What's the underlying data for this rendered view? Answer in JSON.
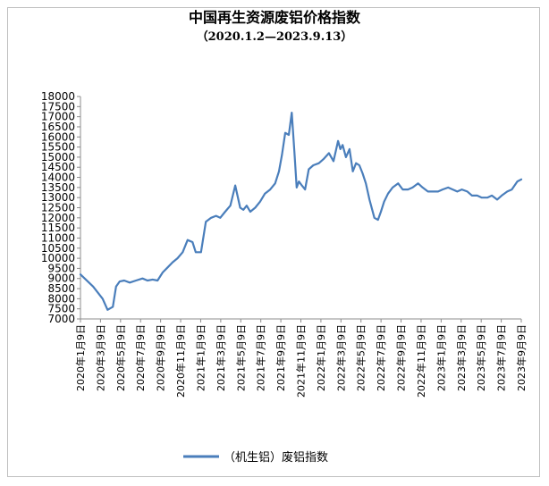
{
  "chart_data": {
    "type": "line",
    "title": "中国再生资源废铝价格指数",
    "subtitle": "（2020.1.2—2023.9.13）",
    "xlabel": "",
    "ylabel": "",
    "ylim": [
      7000,
      18000
    ],
    "yticks": [
      7000,
      7500,
      8000,
      8500,
      9000,
      9500,
      10000,
      10500,
      11000,
      11500,
      12000,
      12500,
      13000,
      13500,
      14000,
      14500,
      15000,
      15500,
      16000,
      16500,
      17000,
      17500,
      18000
    ],
    "xticks": [
      "2020年1月9日",
      "2020年3月9日",
      "2020年5月9日",
      "2020年7月9日",
      "2020年9月9日",
      "2020年11月9日",
      "2021年1月9日",
      "2021年3月9日",
      "2021年5月9日",
      "2021年7月9日",
      "2021年9月9日",
      "2021年11月9日",
      "2022年1月9日",
      "2022年3月9日",
      "2022年5月9日",
      "2022年7月9日",
      "2022年9月9日",
      "2022年11月9日",
      "2023年1月9日",
      "2023年3月9日",
      "2023年5月9日",
      "2023年7月9日",
      "2023年9月9日"
    ],
    "grid": false,
    "legend_position": "bottom",
    "series": [
      {
        "name": "（机生铝）废铝指数",
        "color": "#4a7ebb",
        "x": [
          "2020-01-02",
          "2020-01-15",
          "2020-02-10",
          "2020-03-10",
          "2020-03-25",
          "2020-04-10",
          "2020-04-20",
          "2020-05-01",
          "2020-05-15",
          "2020-06-01",
          "2020-06-20",
          "2020-07-10",
          "2020-07-25",
          "2020-08-10",
          "2020-08-25",
          "2020-09-10",
          "2020-09-25",
          "2020-10-10",
          "2020-10-25",
          "2020-11-10",
          "2020-11-25",
          "2020-12-10",
          "2020-12-20",
          "2021-01-05",
          "2021-01-20",
          "2021-02-05",
          "2021-02-20",
          "2021-03-05",
          "2021-03-20",
          "2021-04-05",
          "2021-04-20",
          "2021-05-05",
          "2021-05-15",
          "2021-05-25",
          "2021-06-05",
          "2021-06-20",
          "2021-07-05",
          "2021-07-20",
          "2021-08-05",
          "2021-08-20",
          "2021-09-01",
          "2021-09-10",
          "2021-09-20",
          "2021-10-01",
          "2021-10-10",
          "2021-10-18",
          "2021-10-25",
          "2021-11-01",
          "2021-11-10",
          "2021-11-20",
          "2021-12-01",
          "2021-12-15",
          "2022-01-01",
          "2022-01-15",
          "2022-02-01",
          "2022-02-15",
          "2022-03-01",
          "2022-03-08",
          "2022-03-15",
          "2022-03-25",
          "2022-04-05",
          "2022-04-15",
          "2022-04-25",
          "2022-05-05",
          "2022-05-15",
          "2022-05-25",
          "2022-06-05",
          "2022-06-20",
          "2022-07-01",
          "2022-07-10",
          "2022-07-20",
          "2022-08-01",
          "2022-08-15",
          "2022-09-01",
          "2022-09-15",
          "2022-10-01",
          "2022-10-15",
          "2022-11-01",
          "2022-11-15",
          "2022-12-01",
          "2022-12-15",
          "2023-01-01",
          "2023-01-15",
          "2023-02-01",
          "2023-02-15",
          "2023-03-01",
          "2023-03-15",
          "2023-04-01",
          "2023-04-15",
          "2023-05-01",
          "2023-05-15",
          "2023-06-01",
          "2023-06-15",
          "2023-07-01",
          "2023-07-15",
          "2023-08-01",
          "2023-08-15",
          "2023-09-01",
          "2023-09-13"
        ],
        "values": [
          9200,
          9000,
          8600,
          8000,
          7450,
          7600,
          8600,
          8850,
          8900,
          8800,
          8900,
          9000,
          8900,
          8950,
          8900,
          9300,
          9550,
          9800,
          10000,
          10300,
          10900,
          10800,
          10300,
          10300,
          11800,
          12000,
          12100,
          12000,
          12300,
          12600,
          13600,
          12500,
          12400,
          12600,
          12300,
          12500,
          12800,
          13200,
          13400,
          13700,
          14300,
          15100,
          16200,
          16100,
          17200,
          15300,
          13500,
          13800,
          13600,
          13400,
          14400,
          14600,
          14700,
          14900,
          15200,
          14800,
          15800,
          15400,
          15600,
          15000,
          15400,
          14300,
          14700,
          14600,
          14200,
          13700,
          12900,
          12000,
          11900,
          12300,
          12800,
          13200,
          13500,
          13700,
          13400,
          13400,
          13500,
          13700,
          13500,
          13300,
          13300,
          13300,
          13400,
          13500,
          13400,
          13300,
          13400,
          13300,
          13100,
          13100,
          13000,
          13000,
          13100,
          12900,
          13100,
          13300,
          13400,
          13800,
          13900
        ]
      }
    ]
  }
}
